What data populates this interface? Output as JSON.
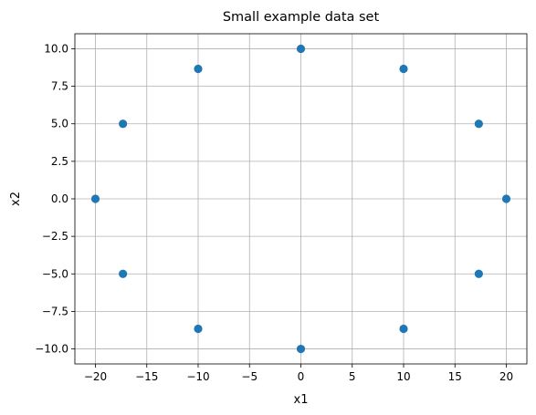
{
  "chart_data": {
    "type": "scatter",
    "title": "Small example data set",
    "xlabel": "x1",
    "ylabel": "x2",
    "xlim": [
      -22,
      22
    ],
    "ylim": [
      -11,
      11
    ],
    "grid": true,
    "x_ticks": [
      -20,
      -15,
      -10,
      -5,
      0,
      5,
      10,
      15,
      20
    ],
    "x_tick_labels": [
      "−20",
      "−15",
      "−10",
      "−5",
      "0",
      "5",
      "10",
      "15",
      "20"
    ],
    "y_ticks": [
      -10,
      -7.5,
      -5,
      -2.5,
      0,
      2.5,
      5,
      7.5,
      10
    ],
    "y_tick_labels": [
      "−10.0",
      "−7.5",
      "−5.0",
      "−2.5",
      "0.0",
      "2.5",
      "5.0",
      "7.5",
      "10.0"
    ],
    "marker_color": "#1f77b4",
    "grid_color": "#b0b0b0",
    "series": [
      {
        "points": [
          {
            "x": 20,
            "y": 0
          },
          {
            "x": 17.32,
            "y": 5
          },
          {
            "x": 10,
            "y": 8.66
          },
          {
            "x": 0,
            "y": 10
          },
          {
            "x": -10,
            "y": 8.66
          },
          {
            "x": -17.32,
            "y": 5
          },
          {
            "x": -20,
            "y": 0
          },
          {
            "x": -17.32,
            "y": -5
          },
          {
            "x": -10,
            "y": -8.66
          },
          {
            "x": 0,
            "y": -10
          },
          {
            "x": 10,
            "y": -8.66
          },
          {
            "x": 17.32,
            "y": -5
          }
        ]
      }
    ]
  }
}
